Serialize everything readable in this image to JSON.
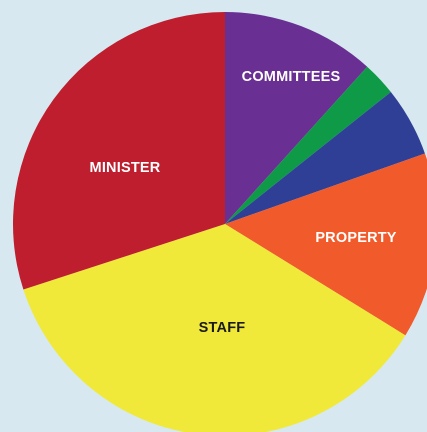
{
  "chart_data": {
    "type": "pie",
    "title": "",
    "slices": [
      {
        "label": "COMMITTEES",
        "value": 11.7,
        "color": "#6a2f93",
        "label_color": "#ffffff"
      },
      {
        "label": "",
        "value": 2.6,
        "color": "#0f9a48",
        "label_color": "#ffffff"
      },
      {
        "label": "",
        "value": 5.3,
        "color": "#2e3f95",
        "label_color": "#ffffff"
      },
      {
        "label": "PROPERTY",
        "value": 14.2,
        "color": "#f15a2a",
        "label_color": "#ffffff"
      },
      {
        "label": "STAFF",
        "value": 36.2,
        "color": "#f0e93a",
        "label_color": "#1a1a1a"
      },
      {
        "label": "MINISTER",
        "value": 30.0,
        "color": "#be1e2d",
        "label_color": "#ffffff"
      }
    ],
    "start_angle": "12 o'clock",
    "direction": "clockwise",
    "background": "#d7e8f1"
  }
}
